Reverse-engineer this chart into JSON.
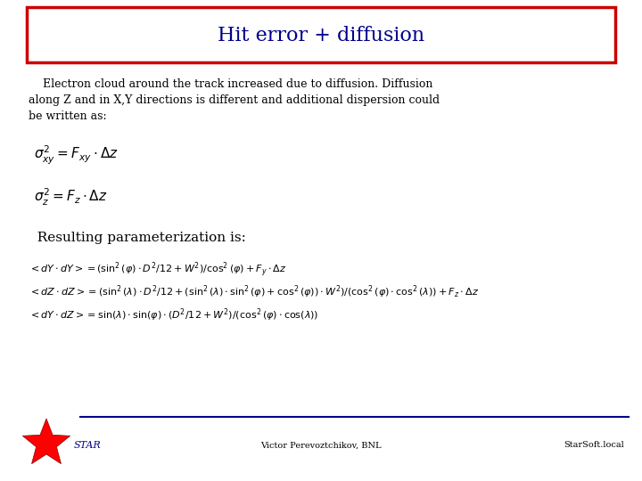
{
  "title": "Hit error + diffusion",
  "title_color": "#00008B",
  "title_box_color": "#CC0000",
  "bg_color": "#FFFFFF",
  "body_text": "    Electron cloud around the track increased due to diffusion. Diffusion\nalong Z and in X,Y directions is different and additional dispersion could\nbe written as:",
  "formula1": "$\\sigma^2_{xy} = F_{xy} \\cdot \\Delta z$",
  "formula2": "$\\sigma^2_z = F_z \\cdot \\Delta z$",
  "subtitle": "  Resulting parameterization is:",
  "eq1": "$< dY \\cdot dY >= (\\sin^2(\\varphi) \\cdot D^2/12 + W^2)/\\cos^2(\\varphi) + F_y \\cdot \\Delta z$",
  "eq2": "$< dZ \\cdot dZ >= (\\sin^2(\\lambda) \\cdot D^2/12 + (\\sin^2(\\lambda)\\cdot\\sin^2(\\varphi)+\\cos^2(\\varphi))\\cdot W^2)/(\\cos^2(\\varphi)\\cdot\\cos^2(\\lambda)) + F_z \\cdot \\Delta z$",
  "eq3": "$< dY \\cdot dZ >= \\sin(\\lambda) \\cdot \\sin(\\varphi) \\cdot (D^2/12 + W^2)/(\\cos^2(\\varphi)\\cdot\\cos(\\lambda))$",
  "footer_left": "Victor Perevoztchikov, BNL",
  "footer_right": "StarSoft.local",
  "text_color": "#000000",
  "footer_line_color": "#00008B",
  "title_fontsize": 16,
  "body_fontsize": 9,
  "formula_fontsize": 11,
  "subtitle_fontsize": 11,
  "eq_fontsize": 8,
  "footer_fontsize": 7
}
